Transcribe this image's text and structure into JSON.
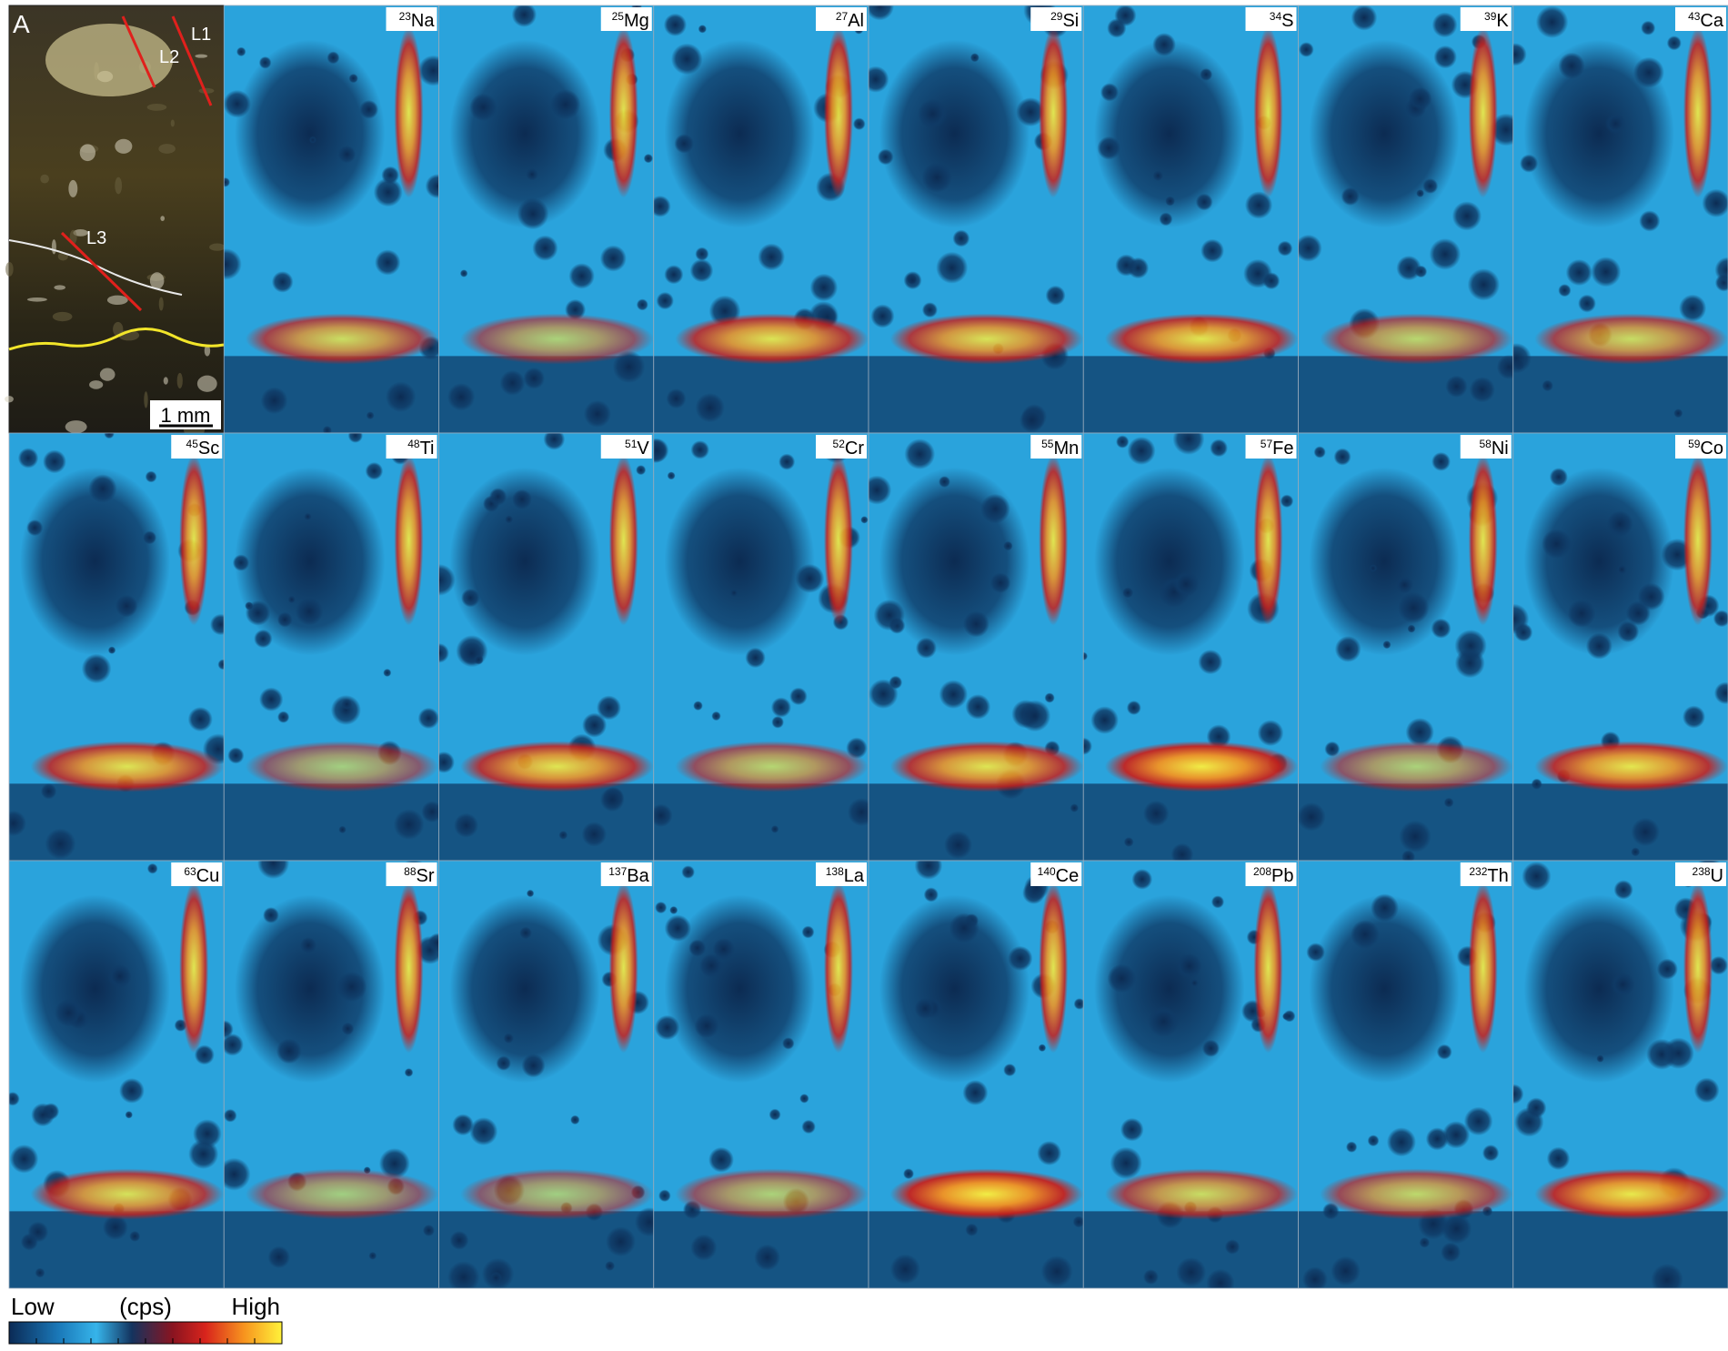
{
  "panel_a": {
    "label": "A",
    "annotations": [
      "L1",
      "L2",
      "L3"
    ],
    "scale_bar": "1 mm"
  },
  "panels": [
    {
      "mass": 23,
      "element": "Na"
    },
    {
      "mass": 25,
      "element": "Mg"
    },
    {
      "mass": 27,
      "element": "Al"
    },
    {
      "mass": 29,
      "element": "Si"
    },
    {
      "mass": 34,
      "element": "S"
    },
    {
      "mass": 39,
      "element": "K"
    },
    {
      "mass": 43,
      "element": "Ca"
    },
    {
      "mass": 45,
      "element": "Sc"
    },
    {
      "mass": 48,
      "element": "Ti"
    },
    {
      "mass": 51,
      "element": "V"
    },
    {
      "mass": 52,
      "element": "Cr"
    },
    {
      "mass": 55,
      "element": "Mn"
    },
    {
      "mass": 57,
      "element": "Fe"
    },
    {
      "mass": 58,
      "element": "Ni"
    },
    {
      "mass": 59,
      "element": "Co"
    },
    {
      "mass": 63,
      "element": "Cu"
    },
    {
      "mass": 88,
      "element": "Sr"
    },
    {
      "mass": 137,
      "element": "Ba"
    },
    {
      "mass": 138,
      "element": "La"
    },
    {
      "mass": 140,
      "element": "Ce"
    },
    {
      "mass": 208,
      "element": "Pb"
    },
    {
      "mass": 232,
      "element": "Th"
    },
    {
      "mass": 238,
      "element": "U"
    }
  ],
  "legend": {
    "low": "Low",
    "unit": "(cps)",
    "high": "High"
  }
}
